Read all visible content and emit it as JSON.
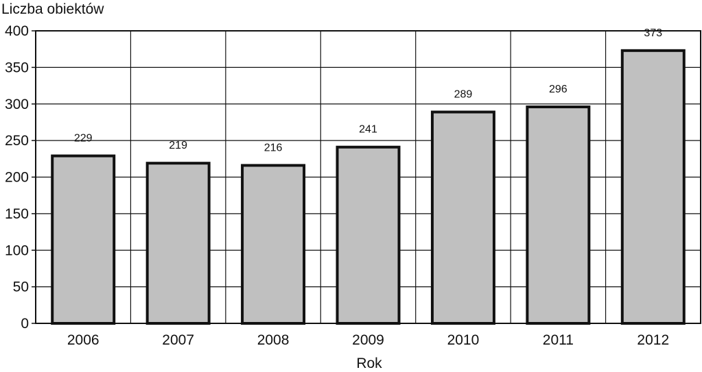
{
  "chart_data": {
    "type": "bar",
    "title": "",
    "ylabel": "Liczba obiektów",
    "xlabel": "Rok",
    "categories": [
      "2006",
      "2007",
      "2008",
      "2009",
      "2010",
      "2011",
      "2012"
    ],
    "values": [
      229,
      219,
      216,
      241,
      289,
      296,
      373
    ],
    "data_labels": [
      "229",
      "219",
      "216",
      "241",
      "289",
      "296",
      "373"
    ],
    "ylim": [
      0,
      400
    ],
    "yticks": [
      0,
      50,
      100,
      150,
      200,
      250,
      300,
      350,
      400
    ],
    "grid": true,
    "legend": "none",
    "colors": {
      "bar_fill": "#c0c0c0",
      "bar_stroke": "#111111",
      "grid": "#111111"
    }
  }
}
